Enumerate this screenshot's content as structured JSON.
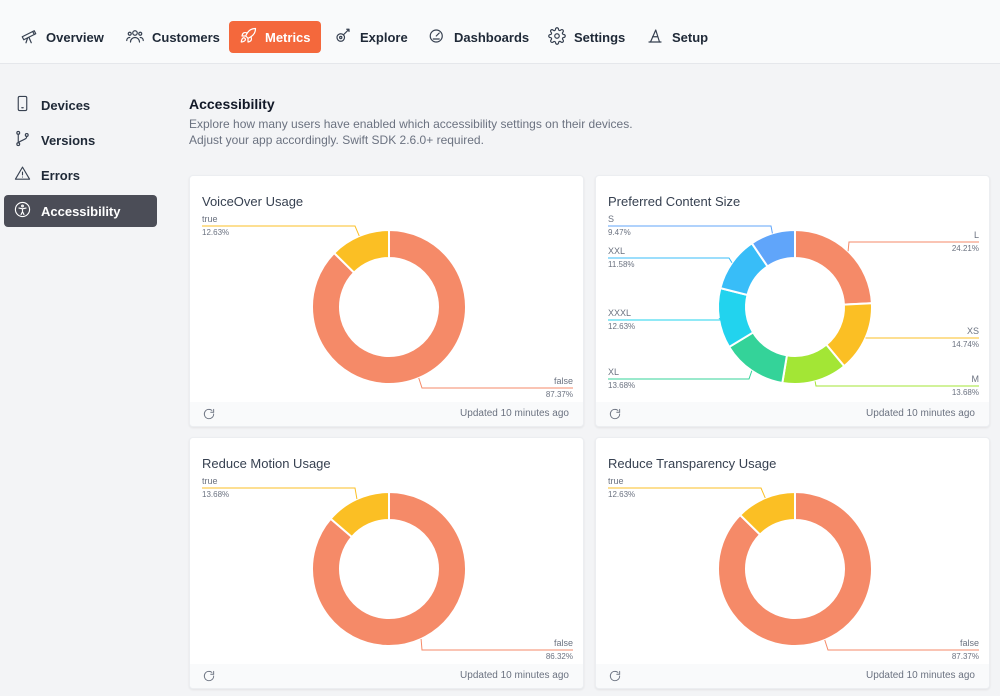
{
  "nav": {
    "items": [
      {
        "label": "Overview",
        "icon": "telescope-icon"
      },
      {
        "label": "Customers",
        "icon": "users-icon"
      },
      {
        "label": "Metrics",
        "icon": "rocket-icon",
        "active": true
      },
      {
        "label": "Explore",
        "icon": "explore-icon"
      },
      {
        "label": "Dashboards",
        "icon": "dashboard-icon"
      },
      {
        "label": "Settings",
        "icon": "gear-icon"
      },
      {
        "label": "Setup",
        "icon": "setup-icon"
      }
    ]
  },
  "sidebar": {
    "items": [
      {
        "label": "Devices",
        "icon": "phone-icon"
      },
      {
        "label": "Versions",
        "icon": "branch-icon"
      },
      {
        "label": "Errors",
        "icon": "warning-icon"
      },
      {
        "label": "Accessibility",
        "icon": "accessibility-icon",
        "active": true
      }
    ]
  },
  "page": {
    "title": "Accessibility",
    "description_line1": "Explore how many users have enabled which accessibility settings on their devices.",
    "description_line2": "Adjust your app accordingly. Swift SDK 2.6.0+ required."
  },
  "colors": {
    "accent": "#f4683c",
    "false_slice": "#f58a68",
    "true_slice": "#fbbf24",
    "sidebar_active": "#4b4d57"
  },
  "cards": [
    {
      "title": "VoiceOver Usage",
      "updated": "Updated 10 minutes ago"
    },
    {
      "title": "Preferred Content Size",
      "updated": "Updated 10 minutes ago"
    },
    {
      "title": "Reduce Motion Usage",
      "updated": "Updated 10 minutes ago"
    },
    {
      "title": "Reduce Transparency Usage",
      "updated": "Updated 10 minutes ago"
    }
  ],
  "chart_data": [
    {
      "type": "pie",
      "title": "VoiceOver Usage",
      "categories": [
        "false",
        "true"
      ],
      "values": [
        87.37,
        12.63
      ],
      "labels": [
        "87.37%",
        "12.63%"
      ],
      "colors": [
        "#f58a68",
        "#fbbf24"
      ]
    },
    {
      "type": "pie",
      "title": "Preferred Content Size",
      "categories": [
        "L",
        "XS",
        "M",
        "XL",
        "XXXL",
        "XXL",
        "S"
      ],
      "values": [
        24.21,
        14.74,
        13.68,
        13.68,
        12.63,
        11.58,
        9.47
      ],
      "labels": [
        "24.21%",
        "14.74%",
        "13.68%",
        "13.68%",
        "12.63%",
        "11.58%",
        "9.47%"
      ],
      "colors": [
        "#f58a68",
        "#fbbf24",
        "#a3e635",
        "#34d399",
        "#22d3ee",
        "#38bdf8",
        "#60a5fa"
      ]
    },
    {
      "type": "pie",
      "title": "Reduce Motion Usage",
      "categories": [
        "false",
        "true"
      ],
      "values": [
        86.32,
        13.68
      ],
      "labels": [
        "86.32%",
        "13.68%"
      ],
      "colors": [
        "#f58a68",
        "#fbbf24"
      ]
    },
    {
      "type": "pie",
      "title": "Reduce Transparency Usage",
      "categories": [
        "false",
        "true"
      ],
      "values": [
        87.37,
        12.63
      ],
      "labels": [
        "87.37%",
        "12.63%"
      ],
      "colors": [
        "#f58a68",
        "#fbbf24"
      ]
    }
  ]
}
